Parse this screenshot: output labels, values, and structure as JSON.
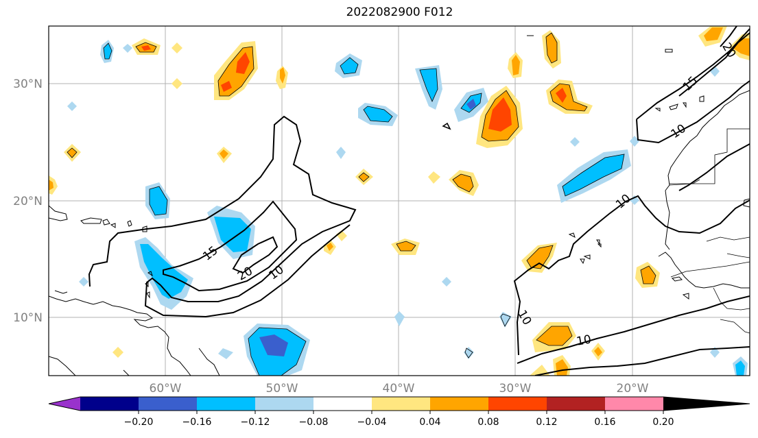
{
  "title": "2022082900 F012",
  "map": {
    "lon_labels": [
      "60°W",
      "50°W",
      "40°W",
      "30°W",
      "20°W"
    ],
    "lat_labels": [
      "30°N",
      "20°N",
      "10°N"
    ],
    "contour_labels": [
      "15",
      "20",
      "10",
      "10",
      "10",
      "10",
      "10",
      "15",
      "20"
    ]
  },
  "colorbar": {
    "tick_labels": [
      "−0.20",
      "−0.16",
      "−0.12",
      "−0.08",
      "−0.04",
      "0.04",
      "0.08",
      "0.12",
      "0.16",
      "0.20"
    ],
    "colors": [
      "#9932cc",
      "#00008b",
      "#3a5fcd",
      "#00bfff",
      "#add8f0",
      "#ffffff",
      "#ffe680",
      "#ffa500",
      "#ff4500",
      "#b22222",
      "#ff88aa"
    ]
  }
}
